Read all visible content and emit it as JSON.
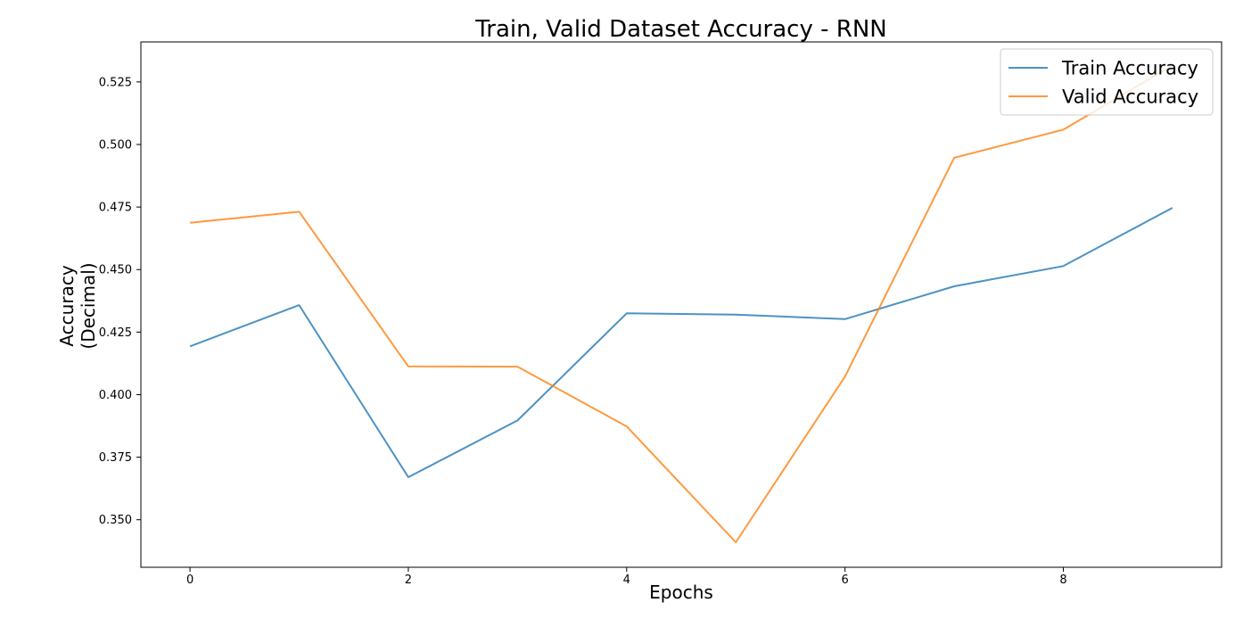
{
  "chart_data": {
    "type": "line",
    "title": "Train, Valid Dataset Accuracy - RNN",
    "xlabel": "Epochs",
    "ylabel_lines": [
      "Accuracy",
      "(Decimal)"
    ],
    "x": [
      0,
      1,
      2,
      3,
      4,
      5,
      6,
      7,
      8,
      9
    ],
    "xlim": [
      -0.45,
      9.45
    ],
    "ylim": [
      0.331,
      0.541
    ],
    "xticks": [
      0,
      2,
      4,
      6,
      8
    ],
    "xtick_labels": [
      "0",
      "2",
      "4",
      "6",
      "8"
    ],
    "yticks": [
      0.35,
      0.375,
      0.4,
      0.425,
      0.45,
      0.475,
      0.5,
      0.525
    ],
    "ytick_labels": [
      "0.350",
      "0.375",
      "0.400",
      "0.425",
      "0.450",
      "0.475",
      "0.500",
      "0.525"
    ],
    "grid": false,
    "legend_position": "top-right",
    "series": [
      {
        "name": "Train Accuracy",
        "color": "#1f77b4",
        "values": [
          0.4193,
          0.4358,
          0.367,
          0.3897,
          0.4325,
          0.432,
          0.4302,
          0.4433,
          0.4514,
          0.4747
        ]
      },
      {
        "name": "Valid Accuracy",
        "color": "#ff7f0e",
        "values": [
          0.4687,
          0.4731,
          0.4113,
          0.4112,
          0.3873,
          0.341,
          0.4072,
          0.4947,
          0.5059,
          0.5316
        ]
      }
    ]
  }
}
